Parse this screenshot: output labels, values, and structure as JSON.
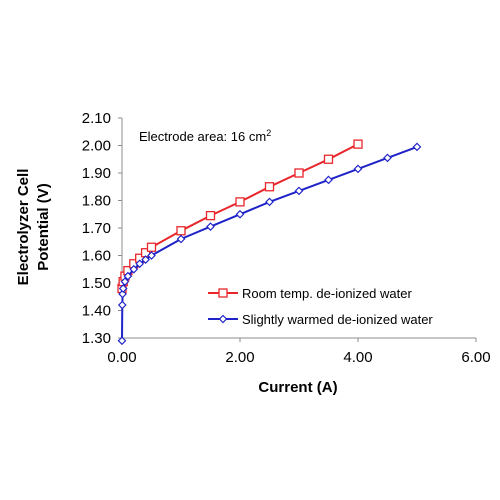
{
  "chart_data": {
    "type": "line",
    "title": "",
    "xlabel": "Current (A)",
    "ylabel": "Electrolyzer Cell Potential (V)",
    "ylabel_lines": [
      "Electrolyzer Cell",
      "Potential (V)"
    ],
    "xlim": [
      0,
      6
    ],
    "ylim": [
      1.3,
      2.1
    ],
    "x_ticks": [
      "0.00",
      "2.00",
      "4.00",
      "6.00"
    ],
    "y_ticks": [
      "1.30",
      "1.40",
      "1.50",
      "1.60",
      "1.70",
      "1.80",
      "1.90",
      "2.00",
      "2.10"
    ],
    "grid": false,
    "annotation": {
      "text": "Electrode area: 16 cm",
      "superscript": "2"
    },
    "legend_position": "bottom-right",
    "series": [
      {
        "name": "Room temp. de-ionized water",
        "color": "#e8262b",
        "marker": "square",
        "x": [
          0,
          0.02,
          0.05,
          0.1,
          0.2,
          0.3,
          0.4,
          0.5,
          1.0,
          1.5,
          2.0,
          2.5,
          3.0,
          3.5,
          4.0
        ],
        "y": [
          1.48,
          1.505,
          1.525,
          1.545,
          1.57,
          1.59,
          1.61,
          1.63,
          1.69,
          1.745,
          1.795,
          1.85,
          1.9,
          1.95,
          2.005
        ]
      },
      {
        "name": "Slightly warmed de-ionized water",
        "color": "#1f23c8",
        "marker": "diamond",
        "x": [
          0,
          0.005,
          0.01,
          0.02,
          0.05,
          0.1,
          0.2,
          0.3,
          0.4,
          0.5,
          1.0,
          1.5,
          2.0,
          2.5,
          3.0,
          3.5,
          4.0,
          4.5,
          5.0
        ],
        "y": [
          1.29,
          1.42,
          1.46,
          1.48,
          1.505,
          1.525,
          1.55,
          1.57,
          1.585,
          1.6,
          1.66,
          1.705,
          1.75,
          1.795,
          1.835,
          1.875,
          1.915,
          1.955,
          1.995
        ]
      }
    ]
  }
}
